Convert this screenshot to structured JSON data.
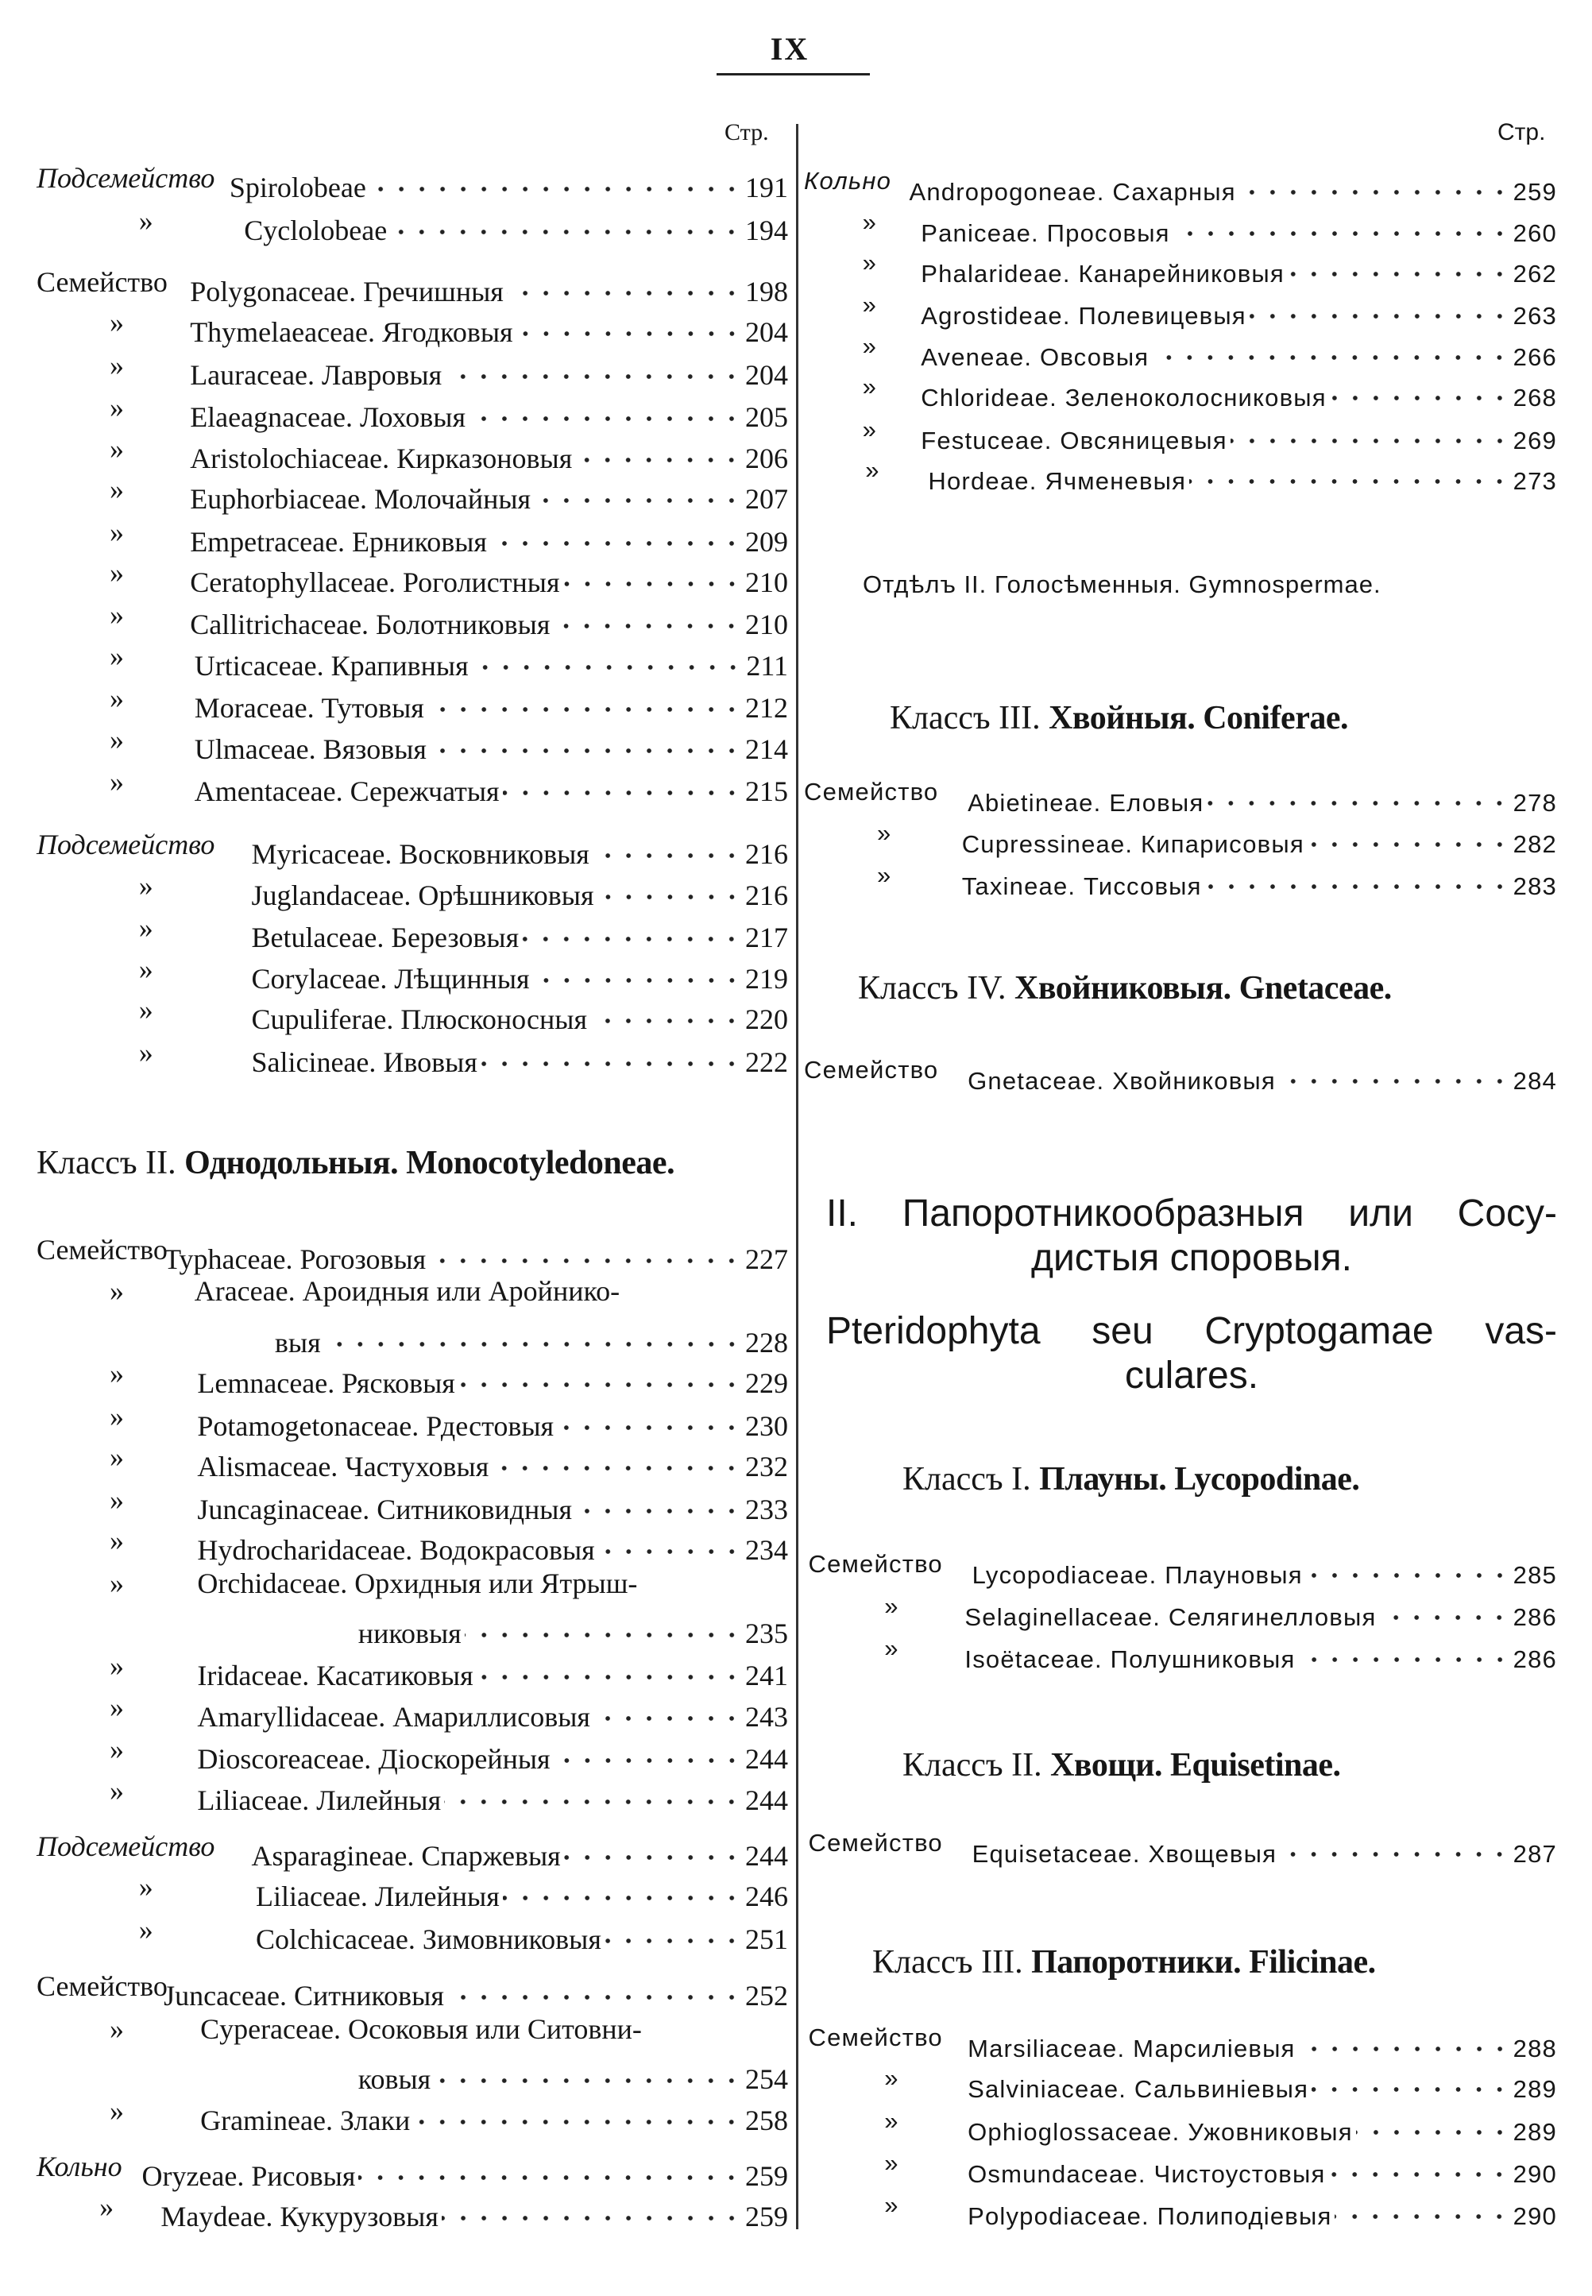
{
  "page_number": "IX",
  "left": {
    "col_header": "Стр.",
    "rows": [
      {
        "prefix": "Подсемейство",
        "name": "Spirolobeae",
        "page": "191"
      },
      {
        "prefix": "»",
        "name": "Cyclolobeae",
        "page": "194"
      },
      {
        "prefix": "Семейство",
        "name": "Polygonaceae. Гречишныя",
        "page": "198"
      },
      {
        "prefix": "»",
        "name": "Thymelaeaceae. Ягодковыя",
        "page": "204"
      },
      {
        "prefix": "»",
        "name": "Lauraceae. Лавровыя",
        "page": "204"
      },
      {
        "prefix": "»",
        "name": "Elaeagnaceae. Лоховыя",
        "page": "205"
      },
      {
        "prefix": "»",
        "name": "Aristolochiaceae. Кирказоновыя",
        "page": "206"
      },
      {
        "prefix": "»",
        "name": "Euphorbiaceae. Молочайныя",
        "page": "207"
      },
      {
        "prefix": "»",
        "name": "Empetraceae. Ерниковыя",
        "page": "209"
      },
      {
        "prefix": "»",
        "name": "Ceratophyllaceae. Роголистныя",
        "page": "210"
      },
      {
        "prefix": "»",
        "name": "Callitrichaceae. Болотниковыя",
        "page": "210"
      },
      {
        "prefix": "»",
        "name": "Urticaceae. Крапивныя",
        "page": "211"
      },
      {
        "prefix": "»",
        "name": "Moraceae. Тутовыя",
        "page": "212"
      },
      {
        "prefix": "»",
        "name": "Ulmaceae. Вязовыя",
        "page": "214"
      },
      {
        "prefix": "»",
        "name": "Amentaceae. Сережчатыя",
        "page": "215"
      },
      {
        "prefix": "Подсемейство",
        "name": "Myricaceae. Восковниковыя",
        "page": "216"
      },
      {
        "prefix": "»",
        "name": "Juglandaceae. Орѣшниковыя",
        "page": "216"
      },
      {
        "prefix": "»",
        "name": "Betulaceae. Березовыя",
        "page": "217"
      },
      {
        "prefix": "»",
        "name": "Corylaceae. Лѣщинныя",
        "page": "219"
      },
      {
        "prefix": "»",
        "name": "Cupuliferae. Плюсконосныя",
        "page": "220"
      },
      {
        "prefix": "»",
        "name": "Salicineae. Ивовыя",
        "page": "222"
      },
      {
        "prefix": "Семейство",
        "name": "Typhaceae. Рогозовыя",
        "page": "227"
      },
      {
        "prefix": "»",
        "name": "Araceae. Ароидныя или Аройнико-",
        "page": ""
      },
      {
        "prefix": "",
        "name": "выя",
        "page": "228"
      },
      {
        "prefix": "»",
        "name": "Lemnaceae. Рясковыя",
        "page": "229"
      },
      {
        "prefix": "»",
        "name": "Potamogetonaceae. Рдестовыя",
        "page": "230"
      },
      {
        "prefix": "»",
        "name": "Alismaceae. Частуховыя",
        "page": "232"
      },
      {
        "prefix": "»",
        "name": "Juncaginaceae. Ситниковидныя",
        "page": "233"
      },
      {
        "prefix": "»",
        "name": "Hydrocharidaceae. Водокрасовыя",
        "page": "234"
      },
      {
        "prefix": "»",
        "name": "Orchidaceae. Орхидныя или Ятрыш-",
        "page": ""
      },
      {
        "prefix": "",
        "name": "никовыя",
        "page": "235"
      },
      {
        "prefix": "»",
        "name": "Iridaceae. Касатиковыя",
        "page": "241"
      },
      {
        "prefix": "»",
        "name": "Amaryllidaceae. Амариллисовыя",
        "page": "243"
      },
      {
        "prefix": "»",
        "name": "Dioscoreaceae. Діоскорейныя",
        "page": "244"
      },
      {
        "prefix": "»",
        "name": "Liliaceae. Лилейныя",
        "page": "244"
      },
      {
        "prefix": "Подсемейство",
        "name": "Asparagineae. Спаржевыя",
        "page": "244"
      },
      {
        "prefix": "»",
        "name": "Liliaceae. Лилейныя",
        "page": "246"
      },
      {
        "prefix": "»",
        "name": "Colchicaceae. Зимовниковыя",
        "page": "251"
      },
      {
        "prefix": "Семейство",
        "name": "Juncaceae. Ситниковыя",
        "page": "252"
      },
      {
        "prefix": "»",
        "name": "Cyperaceae. Осоковыя или Ситовни-",
        "page": ""
      },
      {
        "prefix": "",
        "name": "ковыя",
        "page": "254"
      },
      {
        "prefix": "»",
        "name": "Gramineae. Злаки",
        "page": "258"
      },
      {
        "prefix": "Кольно",
        "name": "Oryzeae. Рисовыя",
        "page": "259"
      },
      {
        "prefix": "»",
        "name": "Maydeae. Кукурузовыя",
        "page": "259"
      }
    ],
    "class_heading": {
      "lead": "Классъ II.",
      "bold": "Однодольныя. Monocotyledoneae."
    }
  },
  "right": {
    "col_header": "Стр.",
    "rows": [
      {
        "prefix": "Кольно",
        "name": "Andropogoneae. Сахарныя",
        "page": "259"
      },
      {
        "prefix": "»",
        "name": "Paniceae. Просовыя",
        "page": "260"
      },
      {
        "prefix": "»",
        "name": "Phalarideae. Канарейниковыя",
        "page": "262"
      },
      {
        "prefix": "»",
        "name": "Agrostideae. Полевицевыя",
        "page": "263"
      },
      {
        "prefix": "»",
        "name": "Aveneae. Овсовыя",
        "page": "266"
      },
      {
        "prefix": "»",
        "name": "Chlorideae. Зеленоколосниковыя",
        "page": "268"
      },
      {
        "prefix": "»",
        "name": "Festuceae. Овсяницевыя",
        "page": "269"
      },
      {
        "prefix": "»",
        "name": "Hordeae. Ячменевыя",
        "page": "273"
      },
      {
        "prefix": "Семейство",
        "name": "Abietineae. Еловыя",
        "page": "278"
      },
      {
        "prefix": "»",
        "name": "Cupressineae. Кипарисовыя",
        "page": "282"
      },
      {
        "prefix": "»",
        "name": "Taxineae. Тиссовыя",
        "page": "283"
      },
      {
        "prefix": "Семейство",
        "name": "Gnetaceae. Хвойниковыя",
        "page": "284"
      },
      {
        "prefix": "Семейство",
        "name": "Lycopodiaceae. Плауновыя",
        "page": "285"
      },
      {
        "prefix": "»",
        "name": "Selaginellaceae. Селягинелловыя",
        "page": "286"
      },
      {
        "prefix": "»",
        "name": "Isoëtaceae. Полушниковыя",
        "page": "286"
      },
      {
        "prefix": "Семейство",
        "name": "Equisetaceae. Хвощевыя",
        "page": "287"
      },
      {
        "prefix": "Семейство",
        "name": "Marsiliaceae. Марсиліевыя",
        "page": "288"
      },
      {
        "prefix": "»",
        "name": "Salviniaceae. Сальвиніевыя",
        "page": "289"
      },
      {
        "prefix": "»",
        "name": "Ophioglossaceae. Ужовниковыя",
        "page": "289"
      },
      {
        "prefix": "»",
        "name": "Osmundaceae. Чистоустовыя",
        "page": "290"
      },
      {
        "prefix": "»",
        "name": "Polypodiaceae. Полиподіевыя",
        "page": "290"
      }
    ],
    "division": "Отдѣлъ II. Голосѣменныя. Gymnospermae.",
    "class_headings": [
      {
        "lead": "Классъ III.",
        "bold": "Хвойныя. Coniferae."
      },
      {
        "lead": "Классъ IV.",
        "bold": "Хвойниковыя. Gnetaceae."
      },
      {
        "lead": "Классъ I.",
        "bold": "Плауны. Lycopodinae."
      },
      {
        "lead": "Классъ II.",
        "bold": "Хвощи. Equisetinae."
      },
      {
        "lead": "Классъ III.",
        "bold": "Папоротники. Filicinae."
      }
    ],
    "section_title": [
      "II. Папоротникообразныя или Сосу-",
      "дистыя споровыя.",
      "Pteridophyta seu Cryptogamae vas-",
      "culares."
    ]
  }
}
